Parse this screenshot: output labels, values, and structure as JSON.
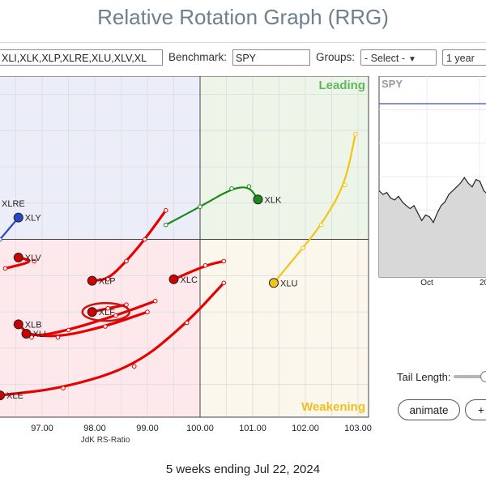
{
  "header": {
    "title": "Relative Rotation Graph (RRG)"
  },
  "toolbar": {
    "symbols_value": "XLI,XLK,XLP,XLRE,XLU,XLV,XL",
    "benchmark_label": "Benchmark:",
    "benchmark_value": "SPY",
    "groups_label": "Groups:",
    "groups_selected": "- Select -",
    "period_selected": "1 year"
  },
  "quadrants": {
    "leading": "Leading",
    "weakening": "Weakening",
    "colors": {
      "leading": "#edf5e9",
      "weakening": "#fbf7ec",
      "lagging": "#fde9ec",
      "improving": "#ebeef8",
      "leading_text": "#5cb85c",
      "weakening_text": "#f0c020"
    }
  },
  "chart_data": {
    "type": "scatter",
    "xlabel": "JdK RS-Ratio",
    "x_ticks": [
      "97.00",
      "98.00",
      "99.00",
      "100.00",
      "101.00",
      "102.00",
      "103.00"
    ],
    "xlim": [
      96.2,
      103.2
    ],
    "ylim": [
      97.55,
      102.25
    ],
    "center": [
      100,
      100
    ],
    "series": [
      {
        "name": "XLK",
        "color": "#1a8a1a",
        "tail": [
          [
            99.35,
            100.2
          ],
          [
            100.0,
            100.45
          ],
          [
            100.6,
            100.7
          ],
          [
            100.93,
            100.73
          ],
          [
            101.1,
            100.55
          ]
        ]
      },
      {
        "name": "XLU",
        "color": "#f2c515",
        "tail": [
          [
            102.95,
            101.45
          ],
          [
            102.75,
            100.75
          ],
          [
            102.3,
            100.2
          ],
          [
            101.95,
            99.88
          ],
          [
            101.4,
            99.4
          ]
        ]
      },
      {
        "name": "XLY",
        "color": "#2946c8",
        "tail": [
          [
            96.2,
            100.0
          ],
          [
            96.55,
            100.3
          ]
        ]
      },
      {
        "name": "XLRE",
        "color": "#1a8a1a",
        "tail": []
      },
      {
        "name": "XLV",
        "color": "#e60000",
        "tail": [
          [
            96.3,
            99.6
          ],
          [
            96.85,
            99.7
          ],
          [
            96.55,
            99.75
          ]
        ]
      },
      {
        "name": "XLP",
        "color": "#e60000",
        "tail": [
          [
            99.35,
            100.4
          ],
          [
            98.95,
            100.0
          ],
          [
            98.6,
            99.7
          ],
          [
            98.25,
            99.45
          ],
          [
            97.95,
            99.43
          ]
        ]
      },
      {
        "name": "XLC",
        "color": "#e60000",
        "tail": [
          [
            100.45,
            99.7
          ],
          [
            100.1,
            99.64
          ],
          [
            99.5,
            99.45
          ]
        ]
      },
      {
        "name": "XLF",
        "color": "#e60000",
        "tail": [
          [
            98.6,
            99.1
          ],
          [
            98.25,
            99.05
          ],
          [
            97.95,
            99.0
          ]
        ]
      },
      {
        "name": "XLB",
        "color": "#e60000",
        "tail": [
          [
            99.15,
            99.15
          ],
          [
            98.4,
            98.95
          ],
          [
            97.5,
            98.75
          ],
          [
            96.8,
            98.65
          ],
          [
            96.55,
            98.83
          ]
        ]
      },
      {
        "name": "XLI",
        "color": "#e60000",
        "tail": [
          [
            99.0,
            99.0
          ],
          [
            98.2,
            98.8
          ],
          [
            97.3,
            98.65
          ],
          [
            96.7,
            98.7
          ]
        ]
      },
      {
        "name": "XLE",
        "color": "#e60000",
        "tail": [
          [
            100.45,
            99.4
          ],
          [
            99.75,
            98.85
          ],
          [
            98.75,
            98.25
          ],
          [
            97.4,
            97.95
          ],
          [
            96.2,
            97.85
          ]
        ]
      }
    ]
  },
  "xlf_highlight": {
    "label": "XLF",
    "color": "#cc1111"
  },
  "mini_chart": {
    "symbol": "SPY",
    "x_ticks": [
      "Oct",
      "20"
    ],
    "values": [
      100,
      99,
      99.5,
      98,
      97.5,
      98.5,
      97,
      96,
      95.2,
      96,
      94,
      92,
      93.5,
      93,
      91.5,
      94,
      96,
      97,
      99,
      100,
      101,
      102,
      103.5,
      102,
      101,
      103,
      102.5,
      100,
      99
    ]
  },
  "controls": {
    "tail_length_label": "Tail Length:",
    "animate_label": "animate",
    "plus_label": "+"
  },
  "footer": {
    "caption": "5 weeks ending Jul 22, 2024"
  }
}
